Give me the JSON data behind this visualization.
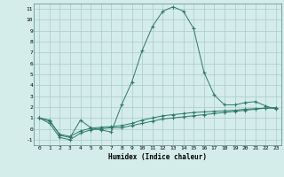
{
  "xlabel": "Humidex (Indice chaleur)",
  "x": [
    0,
    1,
    2,
    3,
    4,
    5,
    6,
    7,
    8,
    9,
    10,
    11,
    12,
    13,
    14,
    15,
    16,
    17,
    18,
    19,
    20,
    21,
    22,
    23
  ],
  "line1": [
    1.0,
    0.8,
    -0.6,
    -0.8,
    0.8,
    0.1,
    -0.1,
    -0.3,
    2.2,
    4.3,
    7.2,
    9.4,
    10.8,
    11.2,
    10.8,
    9.2,
    5.2,
    3.1,
    2.2,
    2.2,
    2.4,
    2.5,
    2.1,
    1.8
  ],
  "line2": [
    1.0,
    0.5,
    -0.8,
    -1.0,
    -0.4,
    -0.1,
    0.0,
    0.1,
    0.1,
    0.3,
    0.5,
    0.7,
    0.9,
    1.0,
    1.1,
    1.2,
    1.3,
    1.4,
    1.5,
    1.6,
    1.7,
    1.8,
    1.9,
    1.9
  ],
  "line3": [
    1.0,
    0.7,
    -0.5,
    -0.7,
    -0.2,
    0.05,
    0.15,
    0.2,
    0.3,
    0.5,
    0.8,
    1.0,
    1.2,
    1.3,
    1.4,
    1.5,
    1.55,
    1.6,
    1.65,
    1.7,
    1.8,
    1.85,
    1.9,
    1.95
  ],
  "line_color": "#2d7a6a",
  "bg_color": "#d4ecea",
  "grid_color": "#a8ccca",
  "ylim": [
    -1.5,
    11.5
  ],
  "xlim": [
    -0.5,
    23.5
  ],
  "yticks": [
    -1,
    0,
    1,
    2,
    3,
    4,
    5,
    6,
    7,
    8,
    9,
    10,
    11
  ],
  "xticks": [
    0,
    1,
    2,
    3,
    4,
    5,
    6,
    7,
    8,
    9,
    10,
    11,
    12,
    13,
    14,
    15,
    16,
    17,
    18,
    19,
    20,
    21,
    22,
    23
  ]
}
